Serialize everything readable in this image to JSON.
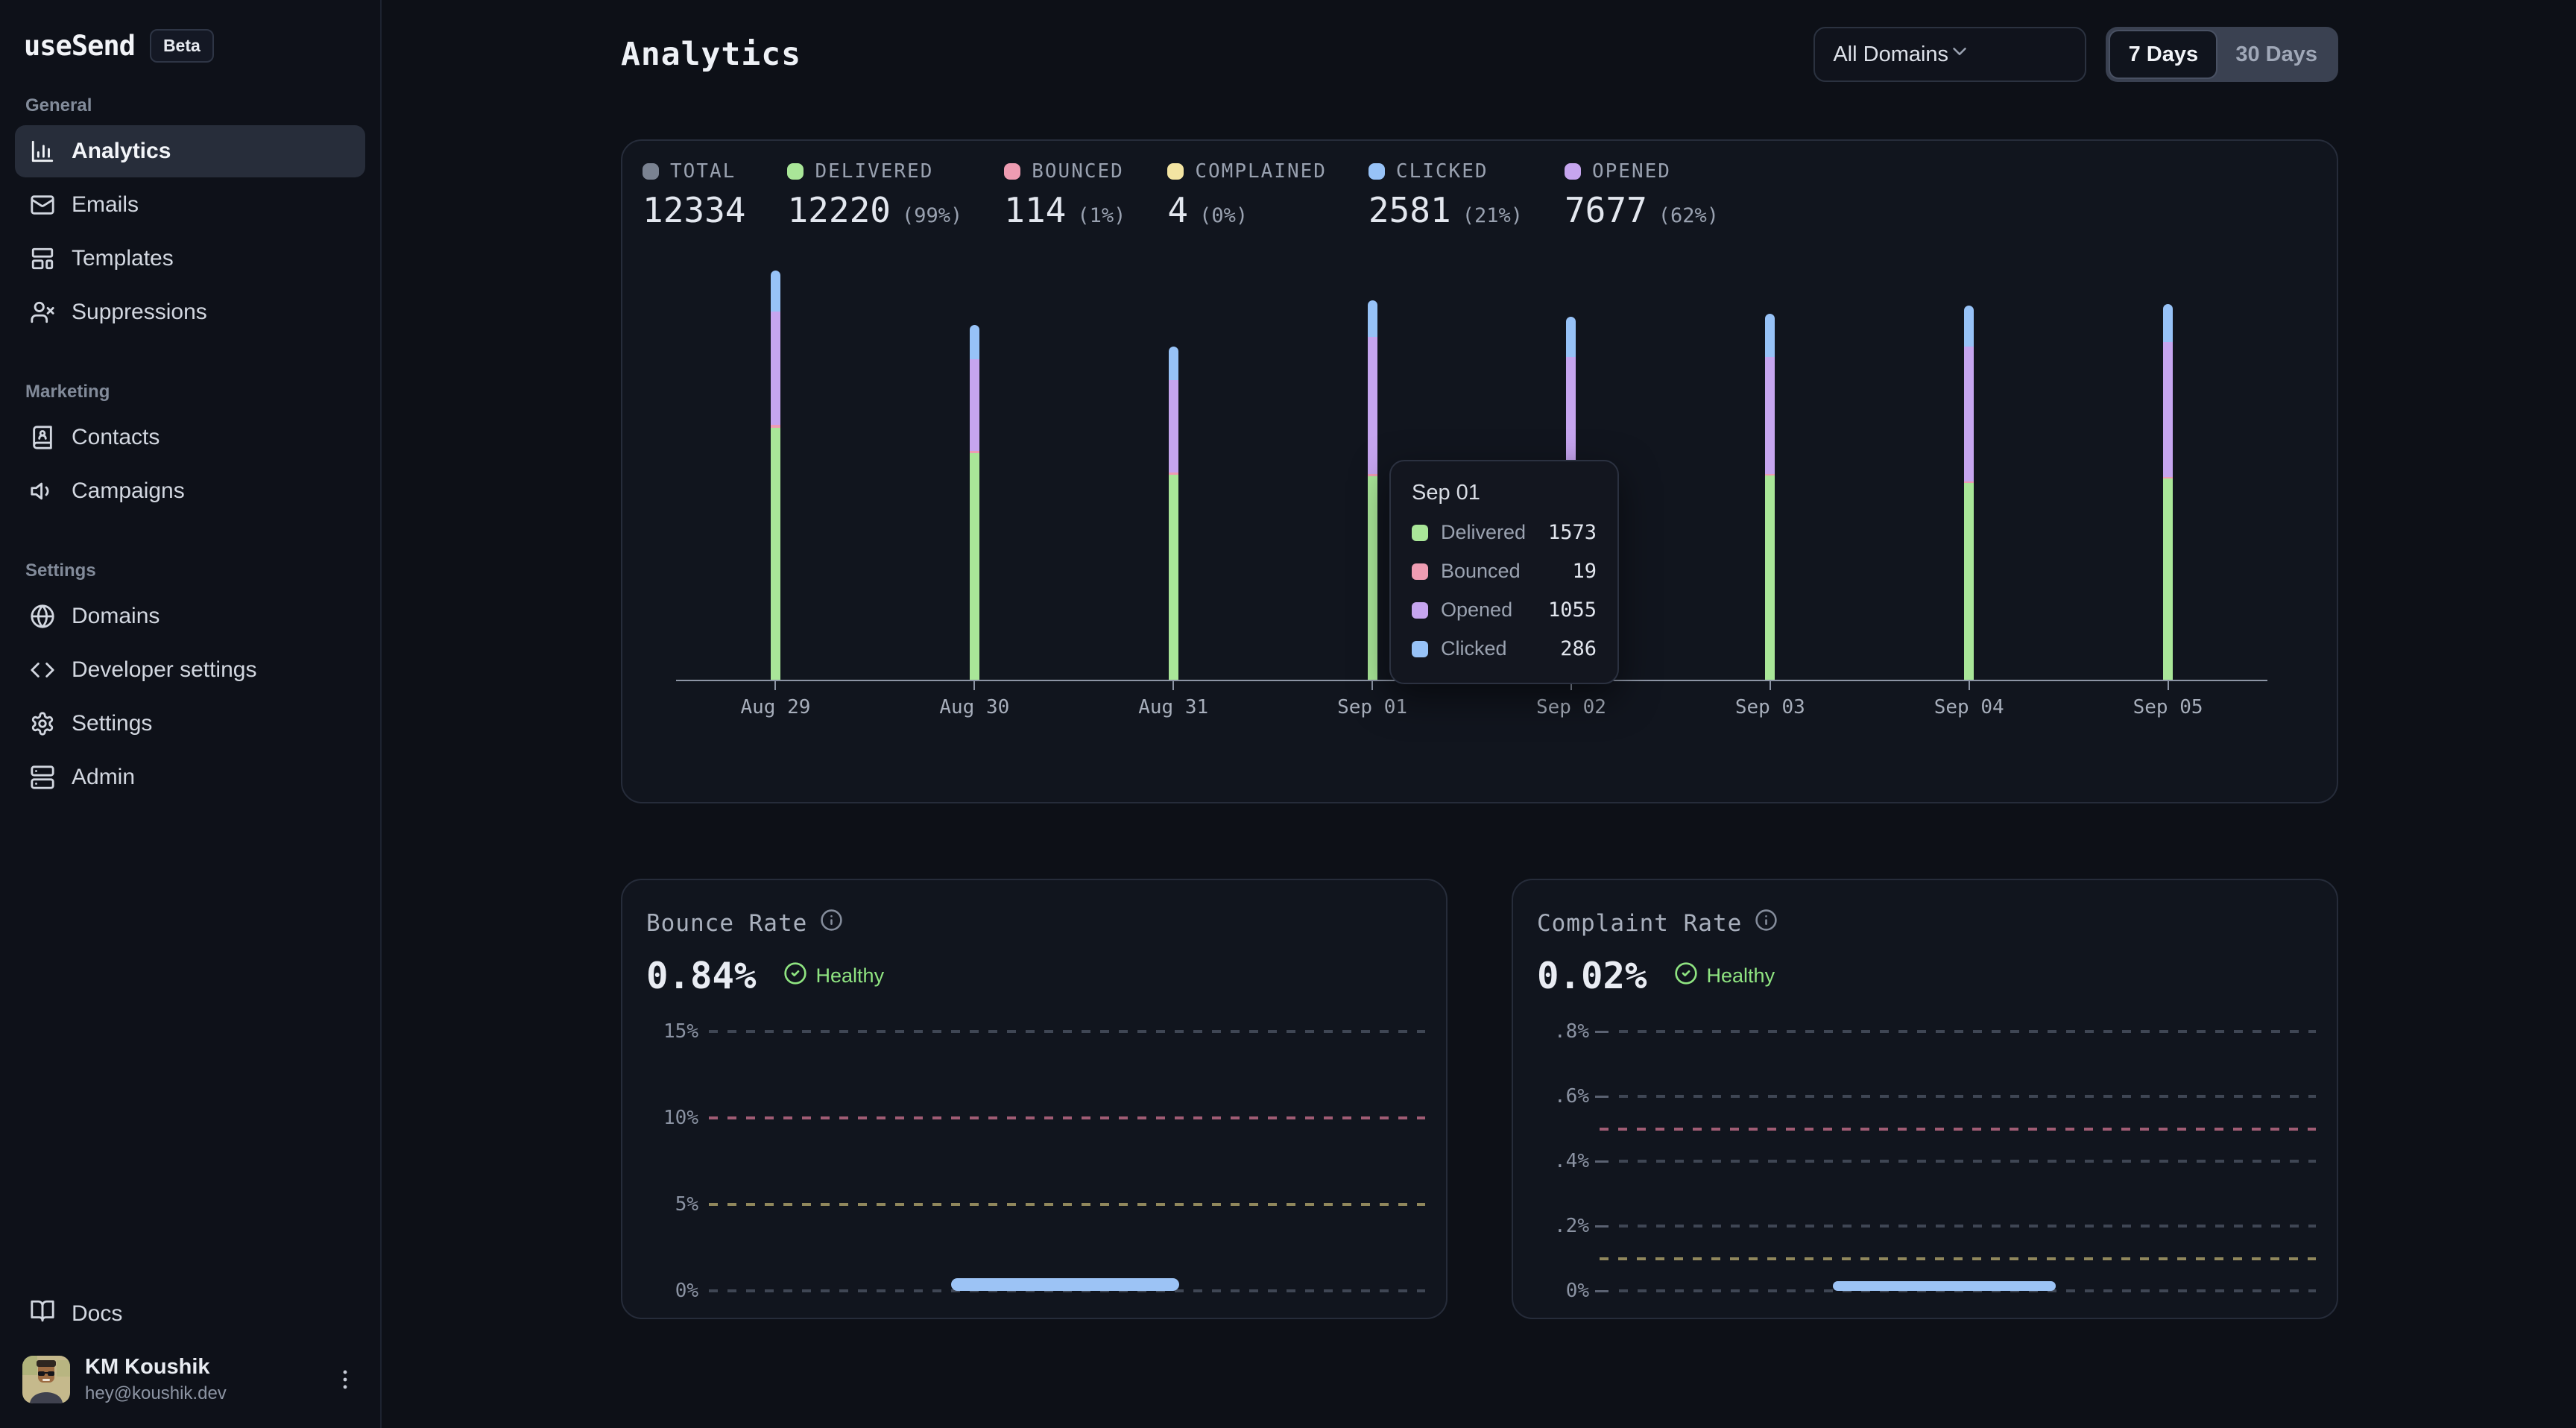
{
  "sidebar": {
    "logo": "useSend",
    "badge": "Beta",
    "sections": [
      {
        "title": "General",
        "items": [
          {
            "label": "Analytics",
            "icon": "bar-chart",
            "active": true
          },
          {
            "label": "Emails",
            "icon": "mail",
            "active": false
          },
          {
            "label": "Templates",
            "icon": "layout-template",
            "active": false
          },
          {
            "label": "Suppressions",
            "icon": "user-x",
            "active": false
          }
        ]
      },
      {
        "title": "Marketing",
        "items": [
          {
            "label": "Contacts",
            "icon": "book-user",
            "active": false
          },
          {
            "label": "Campaigns",
            "icon": "volume",
            "active": false
          }
        ]
      },
      {
        "title": "Settings",
        "items": [
          {
            "label": "Domains",
            "icon": "globe",
            "active": false
          },
          {
            "label": "Developer settings",
            "icon": "code",
            "active": false
          },
          {
            "label": "Settings",
            "icon": "gear",
            "active": false
          },
          {
            "label": "Admin",
            "icon": "server",
            "active": false
          }
        ]
      }
    ],
    "docs": {
      "label": "Docs",
      "icon": "book-open"
    },
    "user": {
      "name": "KM Koushik",
      "email": "hey@koushik.dev"
    }
  },
  "header": {
    "title": "Analytics",
    "domain_filter": "All Domains",
    "range_options": [
      "7 Days",
      "30 Days"
    ],
    "range_selected": "7 Days"
  },
  "stats": [
    {
      "label": "TOTAL",
      "value": "12334",
      "pct": "",
      "color": "#7a8291"
    },
    {
      "label": "DELIVERED",
      "value": "12220",
      "pct": "(99%)",
      "color": "#a9e698"
    },
    {
      "label": "BOUNCED",
      "value": "114",
      "pct": "(1%)",
      "color": "#ee9cb2"
    },
    {
      "label": "COMPLAINED",
      "value": "4",
      "pct": "(0%)",
      "color": "#f3e4a2"
    },
    {
      "label": "CLICKED",
      "value": "2581",
      "pct": "(21%)",
      "color": "#97c2f7"
    },
    {
      "label": "OPENED",
      "value": "7677",
      "pct": "(62%)",
      "color": "#c6a5ef"
    }
  ],
  "tooltip": {
    "title": "Sep 01",
    "rows": [
      {
        "label": "Delivered",
        "value": "1573",
        "color": "#a9e698"
      },
      {
        "label": "Bounced",
        "value": "19",
        "color": "#ee9cb2"
      },
      {
        "label": "Opened",
        "value": "1055",
        "color": "#c6a5ef"
      },
      {
        "label": "Clicked",
        "value": "286",
        "color": "#97c2f7"
      }
    ]
  },
  "chart_data": [
    {
      "type": "bar",
      "stacked": true,
      "categories": [
        "Aug 29",
        "Aug 30",
        "Aug 31",
        "Sep 01",
        "Sep 02",
        "Sep 03",
        "Sep 04",
        "Sep 05"
      ],
      "series": [
        {
          "name": "Delivered",
          "color": "#a9e698",
          "values": [
            1947,
            1751,
            1584,
            1573,
            1538,
            1578,
            1521,
            1555
          ]
        },
        {
          "name": "Bounced",
          "color": "#ee9cb2",
          "values": [
            23,
            17,
            17,
            19,
            17,
            12,
            12,
            12
          ]
        },
        {
          "name": "Opened",
          "color": "#c6a5ef",
          "values": [
            875,
            708,
            714,
            1055,
            939,
            904,
            1042,
            1042
          ]
        },
        {
          "name": "Clicked",
          "color": "#97c2f7",
          "values": [
            317,
            265,
            259,
            286,
            311,
            334,
            317,
            294
          ]
        }
      ],
      "stack_order_bottom_to_top": [
        "Delivered",
        "Bounced",
        "Opened",
        "Clicked"
      ],
      "legend_position": "top",
      "grid": false
    },
    {
      "type": "line",
      "title": "Bounce Rate",
      "value": "0.84%",
      "status": "Healthy",
      "ylim": [
        0,
        15
      ],
      "gridlines": [
        {
          "label": "15%",
          "value": 15,
          "style": "normal"
        },
        {
          "label": "10%",
          "value": 10,
          "style": "danger"
        },
        {
          "label": "5%",
          "value": 5,
          "style": "warning"
        },
        {
          "label": "0%",
          "value": 0,
          "style": "normal"
        }
      ],
      "tick_after_label": false,
      "series": [
        {
          "name": "Bounce rate",
          "color": "#9cc3f5",
          "value": 0.84
        }
      ]
    },
    {
      "type": "line",
      "title": "Complaint Rate",
      "value": "0.02%",
      "status": "Healthy",
      "ylim": [
        0,
        0.8
      ],
      "gridlines": [
        {
          "label": ".8%",
          "value": 0.8,
          "style": "normal"
        },
        {
          "label": ".6%",
          "value": 0.6,
          "style": "normal"
        },
        {
          "label": "",
          "value": 0.5,
          "style": "danger"
        },
        {
          "label": ".4%",
          "value": 0.4,
          "style": "normal"
        },
        {
          "label": ".2%",
          "value": 0.2,
          "style": "normal"
        },
        {
          "label": "",
          "value": 0.1,
          "style": "warning"
        },
        {
          "label": "0%",
          "value": 0,
          "style": "normal"
        }
      ],
      "tick_after_label": true,
      "series": [
        {
          "name": "Complaint rate",
          "color": "#9cc3f5",
          "value": 0.02
        }
      ]
    }
  ]
}
